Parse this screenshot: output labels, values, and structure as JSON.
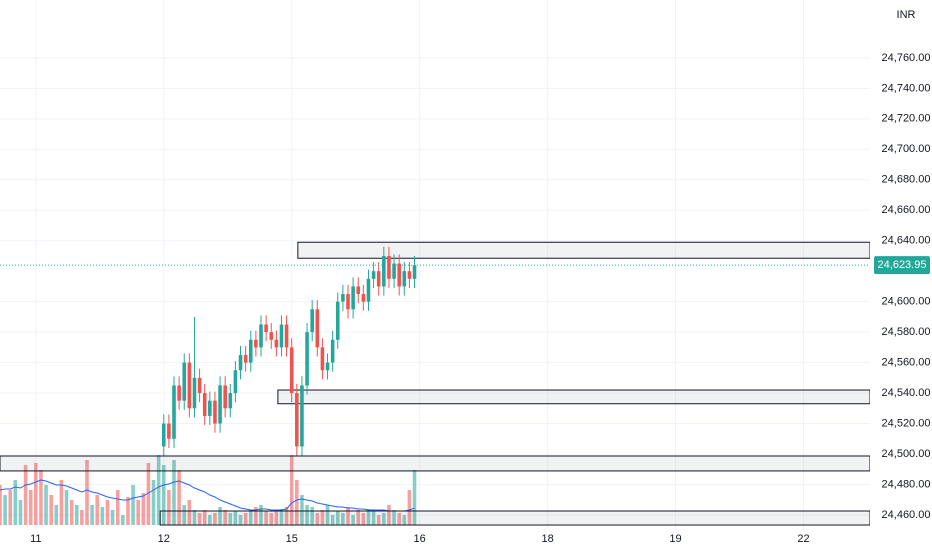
{
  "chart_data": {
    "type": "candlestick",
    "currency": "INR",
    "up_color": "#26a69a",
    "down_color": "#ef5350",
    "ma_color": "#2962ff",
    "grid": true,
    "xlim": [
      0,
      170
    ],
    "xticks": [
      {
        "value": 7,
        "label": "11"
      },
      {
        "value": 32,
        "label": "12"
      },
      {
        "value": 57,
        "label": "15"
      },
      {
        "value": 82,
        "label": "16"
      },
      {
        "value": 107,
        "label": "18"
      },
      {
        "value": 132,
        "label": "19"
      },
      {
        "value": 157,
        "label": "22"
      }
    ],
    "ylim": [
      24437,
      24798
    ],
    "yticks": [
      {
        "value": 24460,
        "label": "24,460.00"
      },
      {
        "value": 24480,
        "label": "24,480.00"
      },
      {
        "value": 24500,
        "label": "24,500.00"
      },
      {
        "value": 24520,
        "label": "24,520.00"
      },
      {
        "value": 24540,
        "label": "24,540.00"
      },
      {
        "value": 24560,
        "label": "24,560.00"
      },
      {
        "value": 24580,
        "label": "24,580.00"
      },
      {
        "value": 24600,
        "label": "24,600.00"
      },
      {
        "value": 24640,
        "label": "24,640.00"
      },
      {
        "value": 24660,
        "label": "24,660.00"
      },
      {
        "value": 24680,
        "label": "24,680.00"
      },
      {
        "value": 24700,
        "label": "24,700.00"
      },
      {
        "value": 24720,
        "label": "24,720.00"
      },
      {
        "value": 24740,
        "label": "24,740.00"
      },
      {
        "value": 24760,
        "label": "24,760.00"
      }
    ],
    "x": [
      0,
      1,
      2,
      3,
      4,
      5,
      6,
      7,
      8,
      9,
      10,
      11,
      12,
      13,
      14,
      15,
      16,
      17,
      18,
      19,
      20,
      21,
      22,
      23,
      24,
      25,
      26,
      27,
      28,
      29,
      30,
      31,
      32,
      33,
      34,
      35,
      36,
      37,
      38,
      39,
      40,
      41,
      42,
      43,
      44,
      45,
      46,
      47,
      48,
      49,
      50,
      51,
      52,
      53,
      54,
      55,
      56,
      57,
      58,
      59,
      60,
      61,
      62,
      63,
      64,
      65,
      66,
      67,
      68,
      69,
      70,
      71,
      72,
      73,
      74,
      75,
      76,
      77,
      78,
      79,
      80,
      81
    ],
    "open": [
      null,
      null,
      null,
      null,
      null,
      null,
      null,
      null,
      null,
      null,
      null,
      null,
      null,
      null,
      null,
      null,
      null,
      null,
      null,
      null,
      null,
      null,
      null,
      null,
      null,
      null,
      null,
      null,
      null,
      null,
      null,
      null,
      24505,
      24520,
      24510,
      24545,
      24535,
      24560,
      24530,
      24550,
      24540,
      24525,
      24535,
      24520,
      24545,
      24530,
      24540,
      24555,
      24565,
      24560,
      24575,
      24570,
      24585,
      24580,
      24575,
      24570,
      24585,
      24570,
      24540,
      24505,
      24545,
      24580,
      24595,
      24570,
      24555,
      24560,
      24575,
      24600,
      24605,
      24595,
      24610,
      24605,
      24600,
      24615,
      24620,
      24610,
      24630,
      24615,
      24625,
      24610,
      24620,
      24615
    ],
    "high": [
      null,
      null,
      null,
      null,
      null,
      null,
      null,
      null,
      null,
      null,
      null,
      null,
      null,
      null,
      null,
      null,
      null,
      null,
      null,
      null,
      null,
      null,
      null,
      null,
      null,
      null,
      null,
      null,
      null,
      null,
      null,
      null,
      24526,
      24526,
      24551,
      24551,
      24566,
      24566,
      24590,
      24556,
      24546,
      24541,
      24541,
      24551,
      24551,
      24546,
      24561,
      24571,
      24571,
      24581,
      24581,
      24591,
      24591,
      24586,
      24581,
      24591,
      24591,
      24576,
      24546,
      24551,
      24586,
      24601,
      24601,
      24576,
      24566,
      24581,
      24606,
      24611,
      24611,
      24616,
      24616,
      24611,
      24621,
      24626,
      24626,
      24636,
      24636,
      24631,
      24631,
      24626,
      24626,
      24630
    ],
    "low": [
      null,
      null,
      null,
      null,
      null,
      null,
      null,
      null,
      null,
      null,
      null,
      null,
      null,
      null,
      null,
      null,
      null,
      null,
      null,
      null,
      null,
      null,
      null,
      null,
      null,
      null,
      null,
      null,
      null,
      null,
      null,
      null,
      24499,
      24504,
      24504,
      24529,
      24529,
      24524,
      24524,
      24534,
      24519,
      24519,
      24514,
      24514,
      24524,
      24524,
      24534,
      24549,
      24554,
      24554,
      24564,
      24564,
      24574,
      24569,
      24564,
      24564,
      24564,
      24534,
      24499,
      24499,
      24539,
      24574,
      24564,
      24549,
      24549,
      24554,
      24569,
      24594,
      24589,
      24589,
      24599,
      24594,
      24594,
      24609,
      24604,
      24604,
      24609,
      24609,
      24604,
      24604,
      24609,
      24609
    ],
    "close": [
      null,
      null,
      null,
      null,
      null,
      null,
      null,
      null,
      null,
      null,
      null,
      null,
      null,
      null,
      null,
      null,
      null,
      null,
      null,
      null,
      null,
      null,
      null,
      null,
      null,
      null,
      null,
      null,
      null,
      null,
      null,
      null,
      24520,
      24510,
      24545,
      24535,
      24560,
      24530,
      24550,
      24540,
      24525,
      24535,
      24520,
      24545,
      24530,
      24540,
      24555,
      24565,
      24560,
      24575,
      24570,
      24585,
      24580,
      24575,
      24570,
      24585,
      24570,
      24540,
      24505,
      24545,
      24580,
      24595,
      24570,
      24555,
      24560,
      24575,
      24600,
      24605,
      24595,
      24610,
      24605,
      24600,
      24615,
      24620,
      24610,
      24630,
      24615,
      24625,
      24610,
      24620,
      24615,
      24623.95
    ],
    "volume_lim": [
      0,
      100
    ],
    "volume": [
      40,
      30,
      35,
      45,
      25,
      60,
      35,
      62,
      55,
      40,
      30,
      20,
      45,
      35,
      25,
      20,
      15,
      65,
      20,
      30,
      18,
      25,
      15,
      35,
      10,
      28,
      40,
      25,
      32,
      62,
      45,
      70,
      60,
      35,
      65,
      55,
      20,
      25,
      15,
      12,
      15,
      10,
      12,
      18,
      15,
      12,
      14,
      10,
      12,
      15,
      18,
      20,
      14,
      12,
      15,
      16,
      18,
      70,
      45,
      30,
      20,
      18,
      12,
      15,
      20,
      10,
      14,
      12,
      18,
      10,
      15,
      12,
      16,
      14,
      10,
      12,
      20,
      15,
      12,
      10,
      35,
      55
    ],
    "volume_up": [
      false,
      true,
      false,
      true,
      true,
      false,
      false,
      false,
      false,
      true,
      false,
      true,
      false,
      true,
      false,
      true,
      false,
      false,
      true,
      false,
      true,
      false,
      true,
      false,
      true,
      false,
      true,
      false,
      false,
      false,
      true,
      true,
      true,
      false,
      true,
      false,
      true,
      false,
      true,
      false,
      false,
      true,
      false,
      true,
      false,
      true,
      true,
      true,
      false,
      true,
      false,
      true,
      false,
      false,
      false,
      true,
      false,
      false,
      false,
      true,
      true,
      true,
      false,
      false,
      true,
      true,
      true,
      true,
      false,
      true,
      false,
      false,
      true,
      true,
      false,
      true,
      false,
      true,
      false,
      true,
      false,
      true
    ],
    "volume_ma": [
      35,
      36,
      36,
      38,
      37,
      40,
      41,
      43,
      45,
      44,
      42,
      40,
      40,
      39,
      37,
      35,
      33,
      35,
      33,
      32,
      30,
      28,
      27,
      26,
      25,
      25,
      27,
      28,
      29,
      32,
      35,
      38,
      40,
      41,
      43,
      44,
      42,
      40,
      37,
      35,
      33,
      30,
      28,
      25,
      23,
      21,
      19,
      17,
      16,
      15,
      15,
      16,
      16,
      15,
      15,
      15,
      16,
      22,
      25,
      26,
      25,
      24,
      22,
      21,
      20,
      19,
      18,
      18,
      17,
      17,
      16,
      16,
      15,
      15,
      15,
      15,
      14,
      14,
      14,
      14,
      15,
      17
    ],
    "zones": [
      {
        "x0": 58.2,
        "low": 24628.5,
        "high": 24639
      },
      {
        "x0": 54.3,
        "low": 24533,
        "high": 24542
      },
      {
        "x0": 0,
        "low": 24488.9,
        "high": 24498.7
      },
      {
        "x0": 31.3,
        "low": 24453.4,
        "high": 24462.6
      }
    ],
    "last_price": {
      "value": 24623.95,
      "label": "24,623.95"
    }
  }
}
